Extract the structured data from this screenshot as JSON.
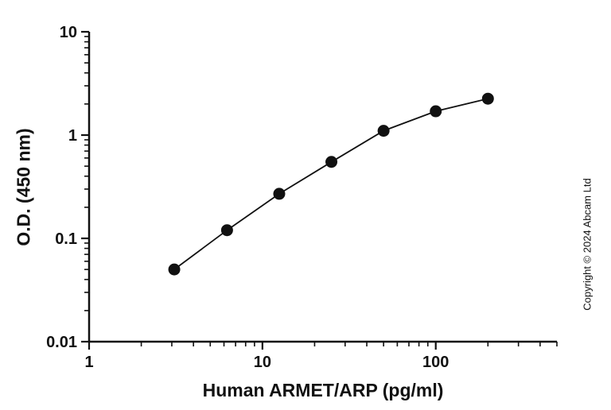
{
  "chart_data": {
    "type": "scatter",
    "title": "",
    "xlabel": "Human ARMET/ARP (pg/ml)",
    "ylabel": "O.D. (450 nm)",
    "xscale": "log",
    "yscale": "log",
    "xlim": [
      1,
      500
    ],
    "ylim": [
      0.01,
      10
    ],
    "x": [
      3.1,
      6.25,
      12.5,
      25,
      50,
      100,
      200
    ],
    "y": [
      0.05,
      0.12,
      0.27,
      0.55,
      1.1,
      1.7,
      2.25
    ],
    "x_major_ticks": [
      1,
      10,
      100
    ],
    "x_tick_labels": [
      "1",
      "10",
      "100"
    ],
    "y_major_ticks": [
      0.01,
      0.1,
      1,
      10
    ],
    "y_tick_labels": [
      "0.01",
      "0.1",
      "1",
      "10"
    ],
    "grid": "off",
    "legend": "none",
    "marker_color": "#111111",
    "line_color": "#111111",
    "axis_color": "#111111"
  },
  "annotations": {
    "copyright": "Copyright © 2024 Abcam Ltd"
  }
}
